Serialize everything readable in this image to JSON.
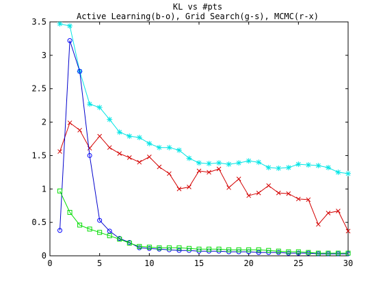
{
  "chart_data": {
    "type": "line",
    "title": "KL vs #pts",
    "subtitle": "Active Learning(b-o), Grid Search(g-s), MCMC(r-x)",
    "xlabel": "",
    "ylabel": "",
    "xlim": [
      0,
      30
    ],
    "ylim": [
      0,
      3.5
    ],
    "xticks": [
      0,
      5,
      10,
      15,
      20,
      25,
      30
    ],
    "yticks": [
      0,
      0.5,
      1,
      1.5,
      2,
      2.5,
      3,
      3.5
    ],
    "xtick_labels": [
      "0",
      "5",
      "10",
      "15",
      "20",
      "25",
      "30"
    ],
    "ytick_labels": [
      "0",
      "0.5",
      "1",
      "1.5",
      "2",
      "2.5",
      "3",
      "3.5"
    ],
    "grid": false,
    "legend": "none",
    "series": [
      {
        "key": "cyan-star",
        "color": "#00e5e5",
        "markerColor": "#00e5e5",
        "marker": "star",
        "x": [
          1,
          2,
          3,
          4,
          5,
          6,
          7,
          8,
          9,
          10,
          11,
          12,
          13,
          14,
          15,
          16,
          17,
          18,
          19,
          20,
          21,
          22,
          23,
          24,
          25,
          26,
          27,
          28,
          29,
          30
        ],
        "y": [
          3.47,
          3.44,
          2.76,
          2.27,
          2.22,
          2.04,
          1.85,
          1.79,
          1.77,
          1.68,
          1.62,
          1.62,
          1.58,
          1.46,
          1.39,
          1.38,
          1.39,
          1.37,
          1.39,
          1.42,
          1.4,
          1.32,
          1.31,
          1.32,
          1.37,
          1.36,
          1.35,
          1.32,
          1.25,
          1.23
        ]
      },
      {
        "key": "red-x",
        "color": "#d40000",
        "markerColor": "#d40000",
        "marker": "x",
        "x": [
          1,
          2,
          3,
          4,
          5,
          6,
          7,
          8,
          9,
          10,
          11,
          12,
          13,
          14,
          15,
          16,
          17,
          18,
          19,
          20,
          21,
          22,
          23,
          24,
          25,
          26,
          27,
          28,
          29,
          30
        ],
        "y": [
          1.56,
          1.99,
          1.88,
          1.61,
          1.79,
          1.62,
          1.53,
          1.47,
          1.4,
          1.48,
          1.33,
          1.23,
          1.0,
          1.03,
          1.27,
          1.25,
          1.3,
          1.02,
          1.15,
          0.9,
          0.94,
          1.05,
          0.94,
          0.93,
          0.85,
          0.84,
          0.47,
          0.64,
          0.67,
          0.37
        ]
      },
      {
        "key": "blue-circle",
        "color": "#0000cc",
        "markerColor": "#0000ff",
        "marker": "circle",
        "x": [
          1,
          2,
          3,
          4,
          5,
          6,
          7,
          8,
          9,
          10,
          11,
          12,
          13,
          14,
          15,
          16,
          17,
          18,
          19,
          20,
          21,
          22,
          23,
          24,
          25,
          26,
          27,
          28,
          29,
          30
        ],
        "y": [
          0.38,
          3.22,
          2.76,
          1.5,
          0.53,
          0.37,
          0.26,
          0.2,
          0.12,
          0.11,
          0.1,
          0.09,
          0.08,
          0.08,
          0.07,
          0.07,
          0.07,
          0.06,
          0.06,
          0.06,
          0.05,
          0.05,
          0.05,
          0.04,
          0.04,
          0.04,
          0.03,
          0.03,
          0.03,
          0.03
        ]
      },
      {
        "key": "green-square",
        "color": "#00dd00",
        "markerColor": "#00dd00",
        "marker": "square",
        "x": [
          1,
          2,
          3,
          4,
          5,
          6,
          7,
          8,
          9,
          10,
          11,
          12,
          13,
          14,
          15,
          16,
          17,
          18,
          19,
          20,
          21,
          22,
          23,
          24,
          25,
          26,
          27,
          28,
          29,
          30
        ],
        "y": [
          0.97,
          0.65,
          0.46,
          0.4,
          0.35,
          0.3,
          0.25,
          0.19,
          0.14,
          0.13,
          0.12,
          0.12,
          0.12,
          0.11,
          0.1,
          0.1,
          0.1,
          0.09,
          0.09,
          0.09,
          0.09,
          0.08,
          0.07,
          0.06,
          0.06,
          0.05,
          0.04,
          0.04,
          0.04,
          0.04
        ]
      }
    ]
  }
}
